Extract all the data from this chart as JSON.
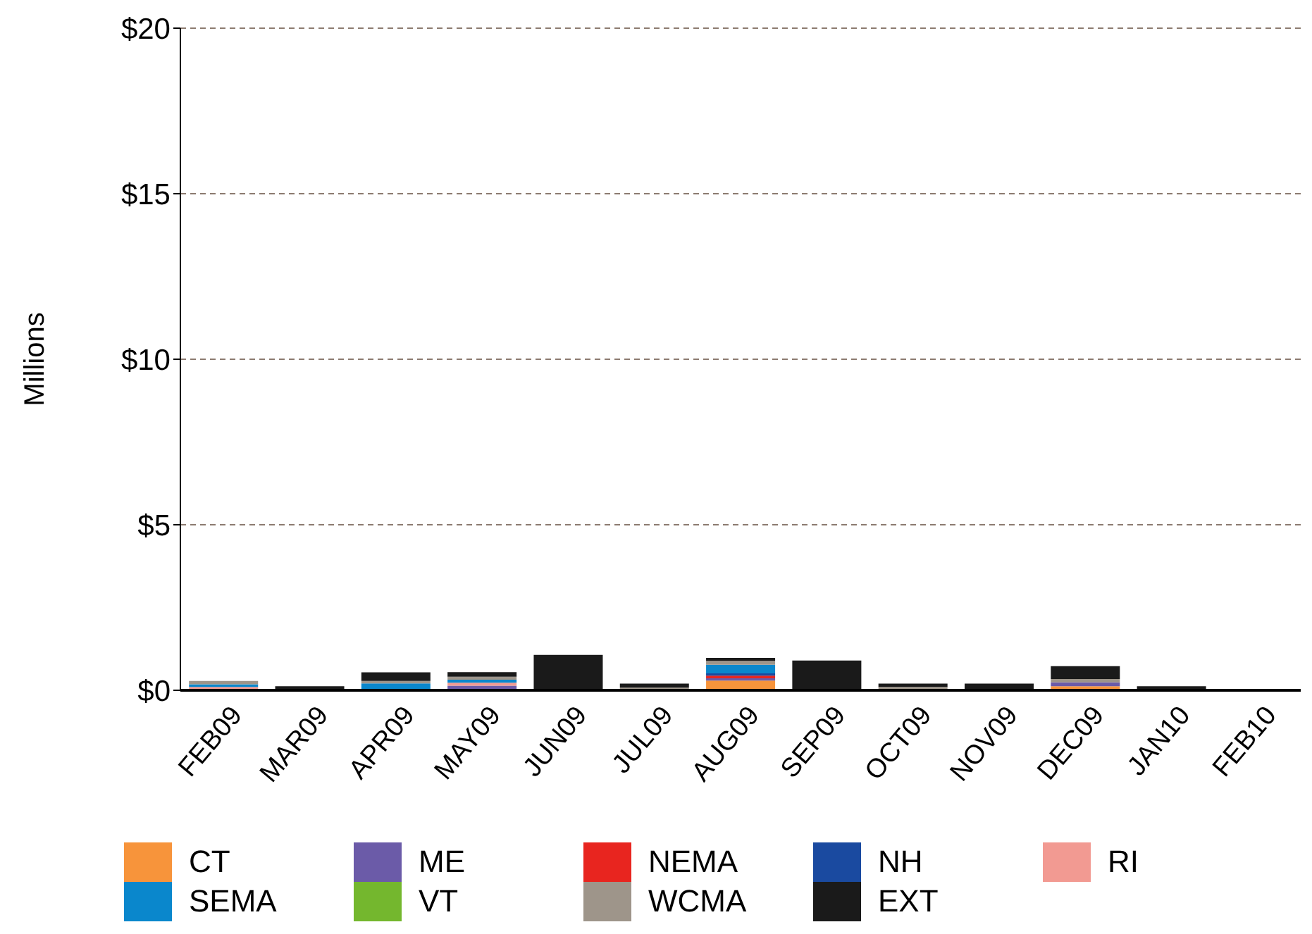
{
  "chart_data": {
    "type": "bar",
    "stacked": true,
    "ylabel": "Millions",
    "categories": [
      "FEB09",
      "MAR09",
      "APR09",
      "MAY09",
      "JUN09",
      "JUL09",
      "AUG09",
      "SEP09",
      "OCT09",
      "NOV09",
      "DEC09",
      "JAN10",
      "FEB10"
    ],
    "series": [
      {
        "name": "CT",
        "color": "#f7943b",
        "values": [
          0,
          0,
          0,
          0,
          0,
          0,
          0.29,
          0,
          0,
          0,
          0.12,
          0,
          0
        ]
      },
      {
        "name": "ME",
        "color": "#6b5ba8",
        "values": [
          0,
          0,
          0,
          0.14,
          0,
          0,
          0.07,
          0,
          0,
          0,
          0.12,
          0,
          0
        ]
      },
      {
        "name": "NEMA",
        "color": "#e8251f",
        "values": [
          0,
          0,
          0,
          0,
          0,
          0,
          0.08,
          0,
          0,
          0,
          0,
          0,
          0
        ]
      },
      {
        "name": "NH",
        "color": "#1a4aa0",
        "values": [
          0,
          0,
          0.04,
          0,
          0,
          0,
          0.07,
          0,
          0,
          0,
          0,
          0,
          0
        ]
      },
      {
        "name": "RI",
        "color": "#f29a92",
        "values": [
          0.1,
          0,
          0,
          0.09,
          0,
          0,
          0,
          0,
          0,
          0,
          0,
          0,
          0
        ]
      },
      {
        "name": "SEMA",
        "color": "#0a87cc",
        "values": [
          0.08,
          0,
          0.17,
          0.09,
          0,
          0,
          0.26,
          0,
          0,
          0,
          0,
          0,
          0
        ]
      },
      {
        "name": "VT",
        "color": "#74b72e",
        "values": [
          0,
          0,
          0,
          0,
          0,
          0,
          0,
          0,
          0,
          0,
          0,
          0,
          0
        ]
      },
      {
        "name": "WCMA",
        "color": "#9e958a",
        "values": [
          0.1,
          0,
          0.07,
          0.09,
          0,
          0.08,
          0.12,
          0,
          0.1,
          0,
          0.1,
          0,
          0
        ]
      },
      {
        "name": "EXT",
        "color": "#1a1a1a",
        "values": [
          0,
          0.12,
          0.26,
          0.14,
          1.07,
          0.12,
          0.09,
          0.9,
          0.1,
          0.2,
          0.39,
          0.12,
          0.02
        ]
      }
    ],
    "ylim": [
      0,
      20
    ],
    "yticks": [
      {
        "value": 0,
        "label": "$0"
      },
      {
        "value": 5,
        "label": "$5"
      },
      {
        "value": 10,
        "label": "$10"
      },
      {
        "value": 15,
        "label": "$15"
      },
      {
        "value": 20,
        "label": "$20"
      }
    ],
    "grid": "y",
    "legend": "bottom"
  }
}
